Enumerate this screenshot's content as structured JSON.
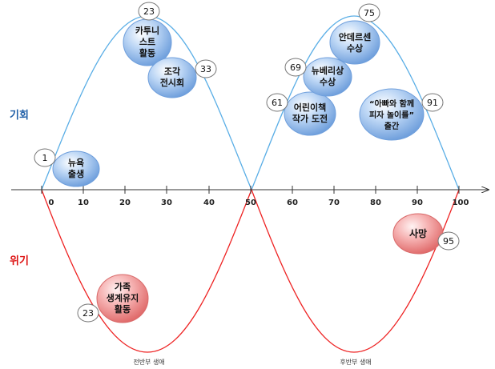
{
  "side_labels": {
    "opportunity": "기회",
    "crisis": "위기"
  },
  "axis": {
    "ticks": [
      "0",
      "10",
      "20",
      "30",
      "40",
      "50",
      "60",
      "70",
      "80",
      "90",
      "100"
    ]
  },
  "period_labels": {
    "first_half": "전반부 생애",
    "second_half": "후반부 생애"
  },
  "events": [
    {
      "id": "debut",
      "lines": [
        "뉴욕",
        "출생"
      ],
      "age": "1",
      "kind": "opportunity"
    },
    {
      "id": "cartoonist",
      "lines": [
        "카투니",
        "스트",
        "활동"
      ],
      "age": "23",
      "kind": "opportunity"
    },
    {
      "id": "sculpture",
      "lines": [
        "조각",
        "전시회"
      ],
      "age": "33",
      "kind": "opportunity"
    },
    {
      "id": "picturebook",
      "lines": [
        "어린이책",
        "작가 도전"
      ],
      "age": "61",
      "kind": "opportunity"
    },
    {
      "id": "newbery",
      "lines": [
        "뉴베리상",
        "수상"
      ],
      "age": "69",
      "kind": "opportunity"
    },
    {
      "id": "andersen",
      "lines": [
        "안데르센",
        "수상"
      ],
      "age": "75",
      "kind": "opportunity"
    },
    {
      "id": "pizza",
      "lines": [
        "“아빠와 함께",
        "피자 놀이를”",
        "출간"
      ],
      "age": "91",
      "kind": "opportunity"
    },
    {
      "id": "family",
      "lines": [
        "가족",
        "생계유지",
        "활동"
      ],
      "age": "23",
      "kind": "crisis"
    },
    {
      "id": "death",
      "lines": [
        "사망"
      ],
      "age": "95",
      "kind": "crisis"
    }
  ],
  "colors": {
    "opportunity_curve": "#5aaee6",
    "crisis_curve": "#ee2222",
    "opportunity_label": "#1f5fa8",
    "crisis_label": "#dd1111",
    "bubble_blue": "#a9c8f0",
    "bubble_red": "#f29a9a"
  }
}
